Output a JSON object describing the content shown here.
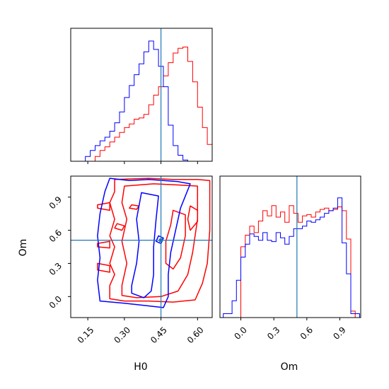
{
  "chart_data": {
    "type": "corner",
    "colors": {
      "series_a": "#ff0000",
      "series_b": "#0000ff",
      "truth": "#1f77b4",
      "frame": "#000000"
    },
    "series": [
      {
        "color": "#ff0000"
      },
      {
        "color": "#0000ff"
      }
    ],
    "truth": {
      "H0": 0.45,
      "Om": 0.51
    },
    "ranges": {
      "H0": [
        0.08,
        0.66
      ],
      "Om": [
        -0.19,
        1.09
      ]
    },
    "ticks": {
      "H0": [
        "0.15",
        "0.30",
        "0.45",
        "0.60"
      ],
      "Om": [
        "0.0",
        "0.3",
        "0.6",
        "0.9"
      ]
    },
    "hist_H0": {
      "edges": [
        0.08,
        0.1,
        0.12,
        0.14,
        0.16,
        0.18,
        0.2,
        0.22,
        0.24,
        0.26,
        0.28,
        0.3,
        0.32,
        0.34,
        0.36,
        0.38,
        0.4,
        0.42,
        0.44,
        0.46,
        0.48,
        0.5,
        0.52,
        0.54,
        0.56,
        0.58,
        0.6,
        0.62,
        0.64,
        0.66
      ],
      "red": [
        0,
        0,
        0,
        0,
        0,
        0.04,
        0.09,
        0.12,
        0.16,
        0.2,
        0.24,
        0.28,
        0.31,
        0.35,
        0.36,
        0.39,
        0.47,
        0.55,
        0.62,
        0.71,
        0.82,
        0.9,
        0.94,
        0.95,
        0.83,
        0.66,
        0.45,
        0.28,
        0.14
      ],
      "blue": [
        0,
        0,
        0,
        0.04,
        0.09,
        0.13,
        0.17,
        0.2,
        0.25,
        0.32,
        0.41,
        0.53,
        0.63,
        0.72,
        0.81,
        0.91,
        1.0,
        0.93,
        0.79,
        0.62,
        0.3,
        0.13,
        0.05,
        0.01,
        0,
        0,
        0,
        0,
        0
      ]
    },
    "hist_Om": {
      "edges": [
        -0.2,
        -0.16,
        -0.12,
        -0.08,
        -0.04,
        0.0,
        0.04,
        0.08,
        0.12,
        0.16,
        0.2,
        0.24,
        0.28,
        0.32,
        0.36,
        0.4,
        0.44,
        0.48,
        0.52,
        0.56,
        0.6,
        0.64,
        0.68,
        0.72,
        0.76,
        0.8,
        0.84,
        0.88,
        0.92,
        0.96,
        1.0,
        1.04,
        1.08
      ],
      "red": [
        0,
        0,
        0,
        0,
        0,
        0.55,
        0.64,
        0.71,
        0.66,
        0.75,
        0.83,
        0.79,
        0.87,
        0.78,
        0.82,
        0.74,
        0.87,
        0.81,
        0.74,
        0.79,
        0.8,
        0.78,
        0.82,
        0.84,
        0.85,
        0.83,
        0.84,
        0.86,
        0.83,
        0.61,
        0.05,
        0
      ],
      "blue": [
        0,
        0.03,
        0.03,
        0.13,
        0.29,
        0.47,
        0.57,
        0.65,
        0.63,
        0.6,
        0.66,
        0.6,
        0.59,
        0.66,
        0.62,
        0.57,
        0.63,
        0.69,
        0.69,
        0.71,
        0.75,
        0.74,
        0.76,
        0.78,
        0.81,
        0.83,
        0.85,
        0.93,
        0.58,
        0.34,
        0.03,
        0.03
      ]
    },
    "contours": {
      "red": [
        [
          [
            0.26,
            1.06
          ],
          [
            0.4,
            1.07
          ],
          [
            0.5,
            1.06
          ],
          [
            0.6,
            1.06
          ],
          [
            0.65,
            1.05
          ],
          [
            0.65,
            0.6
          ],
          [
            0.64,
            0.3
          ],
          [
            0.62,
            0.12
          ],
          [
            0.59,
            -0.03
          ],
          [
            0.5,
            -0.05
          ],
          [
            0.4,
            -0.04
          ],
          [
            0.3,
            -0.04
          ],
          [
            0.24,
            -0.02
          ],
          [
            0.24,
            0.1
          ],
          [
            0.26,
            0.2
          ],
          [
            0.24,
            0.3
          ],
          [
            0.26,
            0.45
          ],
          [
            0.24,
            0.55
          ],
          [
            0.26,
            0.7
          ],
          [
            0.24,
            0.85
          ],
          [
            0.26,
            0.95
          ],
          [
            0.26,
            1.06
          ]
        ],
        [
          [
            0.3,
            1.0
          ],
          [
            0.42,
            1.02
          ],
          [
            0.52,
            1.01
          ],
          [
            0.6,
            1.0
          ],
          [
            0.6,
            0.7
          ],
          [
            0.58,
            0.4
          ],
          [
            0.56,
            0.2
          ],
          [
            0.52,
            0.05
          ],
          [
            0.45,
            0.0
          ],
          [
            0.35,
            -0.01
          ],
          [
            0.29,
            0.01
          ],
          [
            0.29,
            0.1
          ],
          [
            0.31,
            0.3
          ],
          [
            0.29,
            0.5
          ],
          [
            0.31,
            0.7
          ],
          [
            0.29,
            0.85
          ],
          [
            0.3,
            1.0
          ]
        ],
        [
          [
            0.5,
            0.78
          ],
          [
            0.55,
            0.74
          ],
          [
            0.55,
            0.55
          ],
          [
            0.53,
            0.35
          ],
          [
            0.5,
            0.25
          ],
          [
            0.47,
            0.3
          ],
          [
            0.47,
            0.5
          ],
          [
            0.49,
            0.65
          ],
          [
            0.5,
            0.78
          ]
        ],
        [
          [
            0.57,
            0.82
          ],
          [
            0.6,
            0.78
          ],
          [
            0.6,
            0.68
          ],
          [
            0.57,
            0.6
          ],
          [
            0.56,
            0.7
          ],
          [
            0.57,
            0.82
          ]
        ],
        [
          [
            0.19,
            0.83
          ],
          [
            0.24,
            0.85
          ],
          [
            0.24,
            0.78
          ],
          [
            0.19,
            0.8
          ],
          [
            0.19,
            0.83
          ]
        ],
        [
          [
            0.19,
            0.48
          ],
          [
            0.24,
            0.5
          ],
          [
            0.24,
            0.44
          ],
          [
            0.19,
            0.45
          ],
          [
            0.19,
            0.48
          ]
        ],
        [
          [
            0.19,
            0.3
          ],
          [
            0.24,
            0.28
          ],
          [
            0.24,
            0.22
          ],
          [
            0.19,
            0.24
          ],
          [
            0.19,
            0.3
          ]
        ],
        [
          [
            0.27,
            0.66
          ],
          [
            0.3,
            0.64
          ],
          [
            0.29,
            0.6
          ],
          [
            0.26,
            0.62
          ],
          [
            0.27,
            0.66
          ]
        ],
        [
          [
            0.33,
            0.83
          ],
          [
            0.36,
            0.82
          ],
          [
            0.35,
            0.79
          ],
          [
            0.32,
            0.8
          ],
          [
            0.33,
            0.83
          ]
        ]
      ],
      "blue": [
        [
          [
            0.24,
            1.07
          ],
          [
            0.32,
            1.05
          ],
          [
            0.4,
            1.06
          ],
          [
            0.52,
            1.04
          ],
          [
            0.57,
            1.02
          ],
          [
            0.53,
            0.8
          ],
          [
            0.51,
            0.6
          ],
          [
            0.49,
            0.4
          ],
          [
            0.48,
            0.2
          ],
          [
            0.48,
            0.0
          ],
          [
            0.46,
            -0.1
          ],
          [
            0.38,
            -0.08
          ],
          [
            0.3,
            -0.06
          ],
          [
            0.2,
            -0.04
          ],
          [
            0.19,
            0.15
          ],
          [
            0.2,
            0.35
          ],
          [
            0.19,
            0.55
          ],
          [
            0.2,
            0.75
          ],
          [
            0.22,
            0.95
          ],
          [
            0.24,
            1.07
          ]
        ],
        [
          [
            0.37,
            0.94
          ],
          [
            0.44,
            0.91
          ],
          [
            0.43,
            0.7
          ],
          [
            0.42,
            0.45
          ],
          [
            0.42,
            0.2
          ],
          [
            0.41,
            0.05
          ],
          [
            0.38,
            -0.01
          ],
          [
            0.33,
            0.03
          ],
          [
            0.33,
            0.1
          ],
          [
            0.35,
            0.3
          ],
          [
            0.36,
            0.5
          ],
          [
            0.35,
            0.7
          ],
          [
            0.37,
            0.94
          ]
        ],
        [
          [
            0.44,
            0.55
          ],
          [
            0.46,
            0.53
          ],
          [
            0.45,
            0.48
          ],
          [
            0.43,
            0.5
          ],
          [
            0.44,
            0.55
          ]
        ]
      ]
    }
  }
}
